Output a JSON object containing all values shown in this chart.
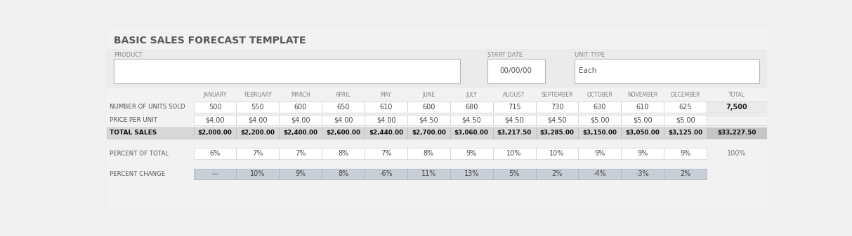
{
  "title": "BASIC SALES FORECAST TEMPLATE",
  "bg_color": "#f0f0f0",
  "white": "#ffffff",
  "cell_blue": "#c8cfd8",
  "product_label": "PRODUCT",
  "start_date_label": "START DATE",
  "start_date_value": "00/00/00",
  "unit_type_label": "UNIT TYPE",
  "unit_type_value": "Each",
  "months": [
    "JANUARY",
    "FEBRUARY",
    "MARCH",
    "APRIL",
    "MAY",
    "JUNE",
    "JULY",
    "AUGUST",
    "SEPTEMBER",
    "OCTOBER",
    "NOVEMBER",
    "DECEMBER",
    "TOTAL"
  ],
  "row_labels": [
    "NUMBER OF UNITS SOLD",
    "PRICE PER UNIT",
    "TOTAL SALES",
    "PERCENT OF TOTAL",
    "PERCENT CHANGE"
  ],
  "units_sold": [
    "500",
    "550",
    "600",
    "650",
    "610",
    "600",
    "680",
    "715",
    "730",
    "630",
    "610",
    "625",
    "7,500"
  ],
  "price_per_unit": [
    "$4.00",
    "$4.00",
    "$4.00",
    "$4.00",
    "$4.00",
    "$4.50",
    "$4.50",
    "$4.50",
    "$4.50",
    "$5.00",
    "$5.00",
    "$5.00",
    ""
  ],
  "total_sales": [
    "$2,000.00",
    "$2,200.00",
    "$2,400.00",
    "$2,600.00",
    "$2,440.00",
    "$2,700.00",
    "$3,060.00",
    "$3,217.50",
    "$3,285.00",
    "$3,150.00",
    "$3,050.00",
    "$3,125.00",
    "$33,227.50"
  ],
  "percent_of_total": [
    "6%",
    "7%",
    "7%",
    "8%",
    "7%",
    "8%",
    "9%",
    "10%",
    "10%",
    "9%",
    "9%",
    "9%",
    "100%"
  ],
  "percent_change": [
    "—",
    "10%",
    "9%",
    "8%",
    "-6%",
    "11%",
    "13%",
    "5%",
    "2%",
    "-4%",
    "-3%",
    "2%",
    ""
  ]
}
